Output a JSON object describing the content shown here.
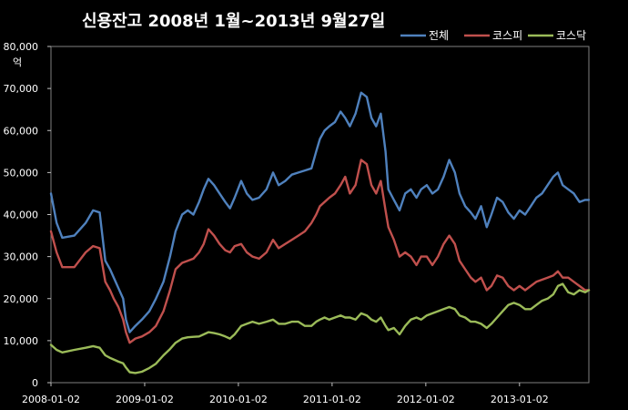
{
  "chart_data": {
    "type": "line",
    "title": "신용잔고 2008년 1월~2013년 9월27일",
    "ylabel": "억",
    "ylim": [
      0,
      80000
    ],
    "yticks": [
      0,
      10000,
      20000,
      30000,
      40000,
      50000,
      60000,
      70000,
      80000
    ],
    "ytick_labels": [
      "0",
      "10,000",
      "20,000",
      "30,000",
      "40,000",
      "50,000",
      "60,000",
      "70,000",
      "80,000"
    ],
    "xlim": [
      2008.0,
      2013.74
    ],
    "xtick_labels": [
      "2008-01-02",
      "2009-01-02",
      "2010-01-02",
      "2011-01-02",
      "2012-01-02",
      "2013-01-02"
    ],
    "xticks": [
      2008.0,
      2009.0,
      2010.0,
      2011.0,
      2012.0,
      2013.0
    ],
    "legend_position": "top-right",
    "grid": false,
    "series": [
      {
        "name": "전체",
        "color": "#4f81bd",
        "points": [
          [
            2008.0,
            45000
          ],
          [
            2008.06,
            38000
          ],
          [
            2008.12,
            34500
          ],
          [
            2008.25,
            35000
          ],
          [
            2008.37,
            38000
          ],
          [
            2008.45,
            41000
          ],
          [
            2008.52,
            40500
          ],
          [
            2008.58,
            29000
          ],
          [
            2008.63,
            27000
          ],
          [
            2008.67,
            25000
          ],
          [
            2008.72,
            22500
          ],
          [
            2008.77,
            20000
          ],
          [
            2008.8,
            15000
          ],
          [
            2008.84,
            12000
          ],
          [
            2008.9,
            13500
          ],
          [
            2008.97,
            15000
          ],
          [
            2009.05,
            17000
          ],
          [
            2009.12,
            20000
          ],
          [
            2009.2,
            24000
          ],
          [
            2009.27,
            30000
          ],
          [
            2009.33,
            36000
          ],
          [
            2009.4,
            40000
          ],
          [
            2009.46,
            41000
          ],
          [
            2009.52,
            40000
          ],
          [
            2009.58,
            43000
          ],
          [
            2009.63,
            46000
          ],
          [
            2009.68,
            48500
          ],
          [
            2009.74,
            47000
          ],
          [
            2009.8,
            45000
          ],
          [
            2009.86,
            43000
          ],
          [
            2009.91,
            41500
          ],
          [
            2009.96,
            44000
          ],
          [
            2010.03,
            48000
          ],
          [
            2010.09,
            45000
          ],
          [
            2010.15,
            43500
          ],
          [
            2010.22,
            44000
          ],
          [
            2010.3,
            46000
          ],
          [
            2010.37,
            50000
          ],
          [
            2010.43,
            47000
          ],
          [
            2010.5,
            48000
          ],
          [
            2010.57,
            49500
          ],
          [
            2010.64,
            50000
          ],
          [
            2010.71,
            50500
          ],
          [
            2010.78,
            51000
          ],
          [
            2010.83,
            55000
          ],
          [
            2010.87,
            58000
          ],
          [
            2010.92,
            60000
          ],
          [
            2010.97,
            61000
          ],
          [
            2011.03,
            62000
          ],
          [
            2011.09,
            64500
          ],
          [
            2011.14,
            63000
          ],
          [
            2011.19,
            61000
          ],
          [
            2011.25,
            64000
          ],
          [
            2011.31,
            69000
          ],
          [
            2011.37,
            68000
          ],
          [
            2011.42,
            63000
          ],
          [
            2011.47,
            61000
          ],
          [
            2011.52,
            64000
          ],
          [
            2011.57,
            55000
          ],
          [
            2011.6,
            46000
          ],
          [
            2011.66,
            43500
          ],
          [
            2011.72,
            41000
          ],
          [
            2011.78,
            45000
          ],
          [
            2011.84,
            46000
          ],
          [
            2011.9,
            44000
          ],
          [
            2011.95,
            46000
          ],
          [
            2012.01,
            47000
          ],
          [
            2012.07,
            45000
          ],
          [
            2012.13,
            46000
          ],
          [
            2012.19,
            49000
          ],
          [
            2012.25,
            53000
          ],
          [
            2012.31,
            50000
          ],
          [
            2012.36,
            45000
          ],
          [
            2012.42,
            42000
          ],
          [
            2012.48,
            40500
          ],
          [
            2012.53,
            39000
          ],
          [
            2012.59,
            42000
          ],
          [
            2012.65,
            37000
          ],
          [
            2012.7,
            40000
          ],
          [
            2012.76,
            44000
          ],
          [
            2012.82,
            43000
          ],
          [
            2012.88,
            40500
          ],
          [
            2012.94,
            39000
          ],
          [
            2013.0,
            41000
          ],
          [
            2013.06,
            40000
          ],
          [
            2013.12,
            42000
          ],
          [
            2013.18,
            44000
          ],
          [
            2013.24,
            45000
          ],
          [
            2013.3,
            47000
          ],
          [
            2013.36,
            49000
          ],
          [
            2013.41,
            50000
          ],
          [
            2013.46,
            47000
          ],
          [
            2013.52,
            46000
          ],
          [
            2013.58,
            45000
          ],
          [
            2013.64,
            43000
          ],
          [
            2013.7,
            43500
          ],
          [
            2013.74,
            43500
          ]
        ]
      },
      {
        "name": "코스피",
        "color": "#c0504d",
        "points": [
          [
            2008.0,
            36000
          ],
          [
            2008.06,
            31000
          ],
          [
            2008.12,
            27500
          ],
          [
            2008.25,
            27500
          ],
          [
            2008.37,
            31000
          ],
          [
            2008.45,
            32500
          ],
          [
            2008.52,
            32000
          ],
          [
            2008.58,
            24000
          ],
          [
            2008.63,
            22000
          ],
          [
            2008.67,
            20000
          ],
          [
            2008.72,
            18000
          ],
          [
            2008.77,
            15000
          ],
          [
            2008.8,
            12000
          ],
          [
            2008.84,
            9500
          ],
          [
            2008.9,
            10500
          ],
          [
            2008.97,
            11000
          ],
          [
            2009.05,
            12000
          ],
          [
            2009.12,
            13500
          ],
          [
            2009.2,
            17000
          ],
          [
            2009.27,
            22000
          ],
          [
            2009.33,
            27000
          ],
          [
            2009.4,
            28500
          ],
          [
            2009.46,
            29000
          ],
          [
            2009.52,
            29500
          ],
          [
            2009.58,
            31000
          ],
          [
            2009.63,
            33000
          ],
          [
            2009.68,
            36500
          ],
          [
            2009.74,
            35000
          ],
          [
            2009.8,
            33000
          ],
          [
            2009.86,
            31500
          ],
          [
            2009.91,
            31000
          ],
          [
            2009.96,
            32500
          ],
          [
            2010.03,
            33000
          ],
          [
            2010.09,
            31000
          ],
          [
            2010.15,
            30000
          ],
          [
            2010.22,
            29500
          ],
          [
            2010.3,
            31000
          ],
          [
            2010.37,
            34000
          ],
          [
            2010.43,
            32000
          ],
          [
            2010.5,
            33000
          ],
          [
            2010.57,
            34000
          ],
          [
            2010.64,
            35000
          ],
          [
            2010.71,
            36000
          ],
          [
            2010.78,
            38000
          ],
          [
            2010.83,
            40000
          ],
          [
            2010.87,
            42000
          ],
          [
            2010.92,
            43000
          ],
          [
            2010.97,
            44000
          ],
          [
            2011.03,
            45000
          ],
          [
            2011.09,
            47000
          ],
          [
            2011.14,
            49000
          ],
          [
            2011.19,
            45000
          ],
          [
            2011.25,
            47000
          ],
          [
            2011.31,
            53000
          ],
          [
            2011.37,
            52000
          ],
          [
            2011.42,
            47000
          ],
          [
            2011.47,
            45000
          ],
          [
            2011.52,
            48000
          ],
          [
            2011.57,
            41000
          ],
          [
            2011.6,
            37000
          ],
          [
            2011.66,
            34000
          ],
          [
            2011.72,
            30000
          ],
          [
            2011.78,
            31000
          ],
          [
            2011.84,
            30000
          ],
          [
            2011.9,
            28000
          ],
          [
            2011.95,
            30000
          ],
          [
            2012.01,
            30000
          ],
          [
            2012.07,
            28000
          ],
          [
            2012.13,
            30000
          ],
          [
            2012.19,
            33000
          ],
          [
            2012.25,
            35000
          ],
          [
            2012.31,
            33000
          ],
          [
            2012.36,
            29000
          ],
          [
            2012.42,
            27000
          ],
          [
            2012.48,
            25000
          ],
          [
            2012.53,
            24000
          ],
          [
            2012.59,
            25000
          ],
          [
            2012.65,
            22000
          ],
          [
            2012.7,
            23000
          ],
          [
            2012.76,
            25500
          ],
          [
            2012.82,
            25000
          ],
          [
            2012.88,
            23000
          ],
          [
            2012.94,
            22000
          ],
          [
            2013.0,
            23000
          ],
          [
            2013.06,
            22000
          ],
          [
            2013.12,
            23000
          ],
          [
            2013.18,
            24000
          ],
          [
            2013.24,
            24500
          ],
          [
            2013.3,
            25000
          ],
          [
            2013.36,
            25500
          ],
          [
            2013.41,
            26500
          ],
          [
            2013.46,
            25000
          ],
          [
            2013.52,
            25000
          ],
          [
            2013.58,
            24000
          ],
          [
            2013.64,
            23000
          ],
          [
            2013.7,
            22000
          ],
          [
            2013.74,
            22000
          ]
        ]
      },
      {
        "name": "코스닥",
        "color": "#9bbb59",
        "points": [
          [
            2008.0,
            9000
          ],
          [
            2008.06,
            7800
          ],
          [
            2008.12,
            7200
          ],
          [
            2008.25,
            7800
          ],
          [
            2008.37,
            8300
          ],
          [
            2008.45,
            8700
          ],
          [
            2008.52,
            8300
          ],
          [
            2008.58,
            6500
          ],
          [
            2008.63,
            5900
          ],
          [
            2008.67,
            5500
          ],
          [
            2008.72,
            5000
          ],
          [
            2008.77,
            4600
          ],
          [
            2008.8,
            3600
          ],
          [
            2008.84,
            2500
          ],
          [
            2008.9,
            2300
          ],
          [
            2008.97,
            2600
          ],
          [
            2009.05,
            3500
          ],
          [
            2009.12,
            4500
          ],
          [
            2009.2,
            6500
          ],
          [
            2009.27,
            8000
          ],
          [
            2009.33,
            9500
          ],
          [
            2009.4,
            10500
          ],
          [
            2009.46,
            10800
          ],
          [
            2009.52,
            10900
          ],
          [
            2009.58,
            11000
          ],
          [
            2009.63,
            11500
          ],
          [
            2009.68,
            12000
          ],
          [
            2009.74,
            11800
          ],
          [
            2009.8,
            11500
          ],
          [
            2009.86,
            11000
          ],
          [
            2009.91,
            10500
          ],
          [
            2009.96,
            11500
          ],
          [
            2010.03,
            13500
          ],
          [
            2010.09,
            14000
          ],
          [
            2010.15,
            14500
          ],
          [
            2010.22,
            14000
          ],
          [
            2010.3,
            14500
          ],
          [
            2010.37,
            15000
          ],
          [
            2010.43,
            14000
          ],
          [
            2010.5,
            14000
          ],
          [
            2010.57,
            14500
          ],
          [
            2010.64,
            14500
          ],
          [
            2010.71,
            13500
          ],
          [
            2010.78,
            13500
          ],
          [
            2010.83,
            14500
          ],
          [
            2010.87,
            15000
          ],
          [
            2010.92,
            15500
          ],
          [
            2010.97,
            15000
          ],
          [
            2011.03,
            15500
          ],
          [
            2011.09,
            16000
          ],
          [
            2011.14,
            15500
          ],
          [
            2011.19,
            15500
          ],
          [
            2011.25,
            15000
          ],
          [
            2011.31,
            16500
          ],
          [
            2011.37,
            16000
          ],
          [
            2011.42,
            15000
          ],
          [
            2011.47,
            14500
          ],
          [
            2011.52,
            15500
          ],
          [
            2011.57,
            13500
          ],
          [
            2011.6,
            12500
          ],
          [
            2011.66,
            13000
          ],
          [
            2011.72,
            11500
          ],
          [
            2011.78,
            13500
          ],
          [
            2011.84,
            15000
          ],
          [
            2011.9,
            15500
          ],
          [
            2011.95,
            15000
          ],
          [
            2012.01,
            16000
          ],
          [
            2012.07,
            16500
          ],
          [
            2012.13,
            17000
          ],
          [
            2012.19,
            17500
          ],
          [
            2012.25,
            18000
          ],
          [
            2012.31,
            17500
          ],
          [
            2012.36,
            16000
          ],
          [
            2012.42,
            15500
          ],
          [
            2012.48,
            14500
          ],
          [
            2012.53,
            14500
          ],
          [
            2012.59,
            14000
          ],
          [
            2012.65,
            13000
          ],
          [
            2012.7,
            14000
          ],
          [
            2012.76,
            15500
          ],
          [
            2012.82,
            17000
          ],
          [
            2012.88,
            18500
          ],
          [
            2012.94,
            19000
          ],
          [
            2013.0,
            18500
          ],
          [
            2013.06,
            17500
          ],
          [
            2013.12,
            17500
          ],
          [
            2013.18,
            18500
          ],
          [
            2013.24,
            19500
          ],
          [
            2013.3,
            20000
          ],
          [
            2013.36,
            21000
          ],
          [
            2013.41,
            23000
          ],
          [
            2013.46,
            23500
          ],
          [
            2013.52,
            21500
          ],
          [
            2013.58,
            21000
          ],
          [
            2013.64,
            22000
          ],
          [
            2013.7,
            21500
          ],
          [
            2013.74,
            22000
          ]
        ]
      }
    ]
  }
}
